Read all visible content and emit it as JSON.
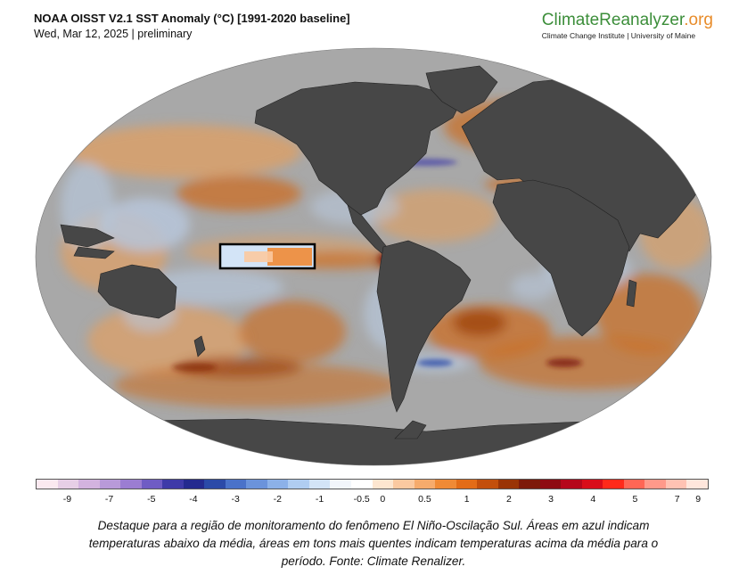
{
  "header": {
    "title": "NOAA OISST V2.1 SST Anomaly (°C) [1991-2020 baseline]",
    "subtitle": "Wed, Mar 12, 2025 | preliminary"
  },
  "brand": {
    "name_main": "ClimateReanalyzer",
    "name_suffix": ".org",
    "tagline": "Climate Change Institute | University of Maine"
  },
  "legend": {
    "colors": [
      "#fbe9f0",
      "#e7cfe6",
      "#d3b3df",
      "#b89ad9",
      "#9b7dd2",
      "#6f5cc4",
      "#3e3aa8",
      "#242a8f",
      "#2b4aa8",
      "#4a72c9",
      "#6b93db",
      "#8cb1e8",
      "#b0cdf1",
      "#d3e4f7",
      "#f2f6fb",
      "#ffffff",
      "#fde6d0",
      "#fbc9a0",
      "#f6ab6c",
      "#f08a35",
      "#e36c17",
      "#c34f0c",
      "#9a3406",
      "#7d1a0a",
      "#8e0b12",
      "#b5071b",
      "#d90d1a",
      "#ff2a1a",
      "#ff6655",
      "#ff998a",
      "#ffc2b3",
      "#ffe6dc"
    ],
    "ticks": [
      "-9",
      "-7",
      "-5",
      "-4",
      "-3",
      "-2",
      "-1",
      "-0.5",
      "0",
      "0.5",
      "1",
      "2",
      "3",
      "4",
      "5",
      "7",
      "9"
    ]
  },
  "map": {
    "colors": {
      "land": "#474747",
      "ocean_neutral": "#a8a8a8",
      "warm_light": "#d9a06a",
      "warm": "#c9702a",
      "warm_dark": "#9a3a08",
      "cool_light": "#b7c6da",
      "cool": "#6f93c4",
      "highlight_border": "#000000"
    },
    "highlight_region": "Niño 3.4"
  },
  "caption": {
    "line1": "Destaque para a região de monitoramento do fenômeno El Niño-Oscilação Sul. Áreas em azul indicam",
    "line2": "temperaturas abaixo da média, áreas em tons mais quentes indicam temperaturas acima da média para o",
    "line3": "período. Fonte: Climate Renalizer."
  }
}
